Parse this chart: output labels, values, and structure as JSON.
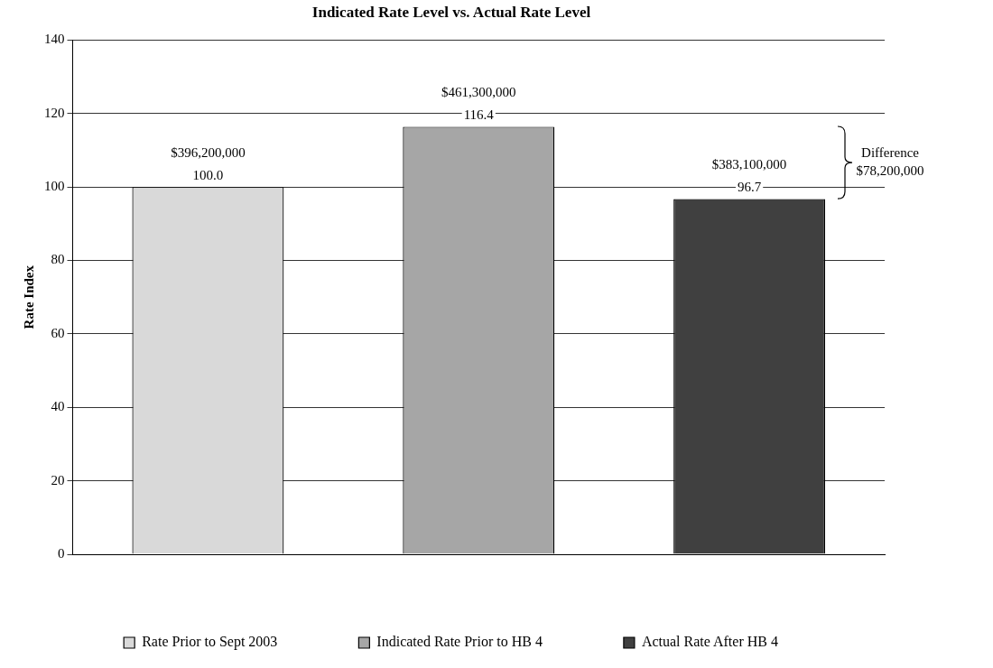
{
  "chart_data": {
    "type": "bar",
    "title": "Indicated Rate Level vs. Actual Rate Level",
    "ylabel": "Rate Index",
    "categories": [
      null,
      null,
      null
    ],
    "series": [
      {
        "name": "Rate Prior to Sept 2003",
        "color": "#d9d9d9",
        "values": [
          100,
          null,
          null
        ],
        "value_labels": [
          "100.0",
          null,
          null
        ]
      },
      {
        "name": "Indicated Rate Prior to HB 4",
        "color": "#a6a6a6",
        "values": [
          null,
          116.4,
          null
        ],
        "value_labels": [
          null,
          "116.4",
          null
        ]
      },
      {
        "name": "Actual Rate After HB 4",
        "color": "#404040",
        "values": [
          null,
          null,
          96.7
        ],
        "value_labels": [
          null,
          null,
          "96.7"
        ]
      }
    ],
    "ylim": [
      0,
      140
    ],
    "yticks": [
      0,
      20,
      40,
      60,
      80,
      100,
      120,
      140
    ],
    "grid": "y",
    "legend": "bottom",
    "annotations": [
      {
        "text": "$396,200,000",
        "y": 100
      },
      {
        "text": "$461,300,000",
        "y": 116.4
      },
      {
        "text": "$383,100,000",
        "y": 96.7
      },
      "Difference\n$78,200,000"
    ]
  }
}
